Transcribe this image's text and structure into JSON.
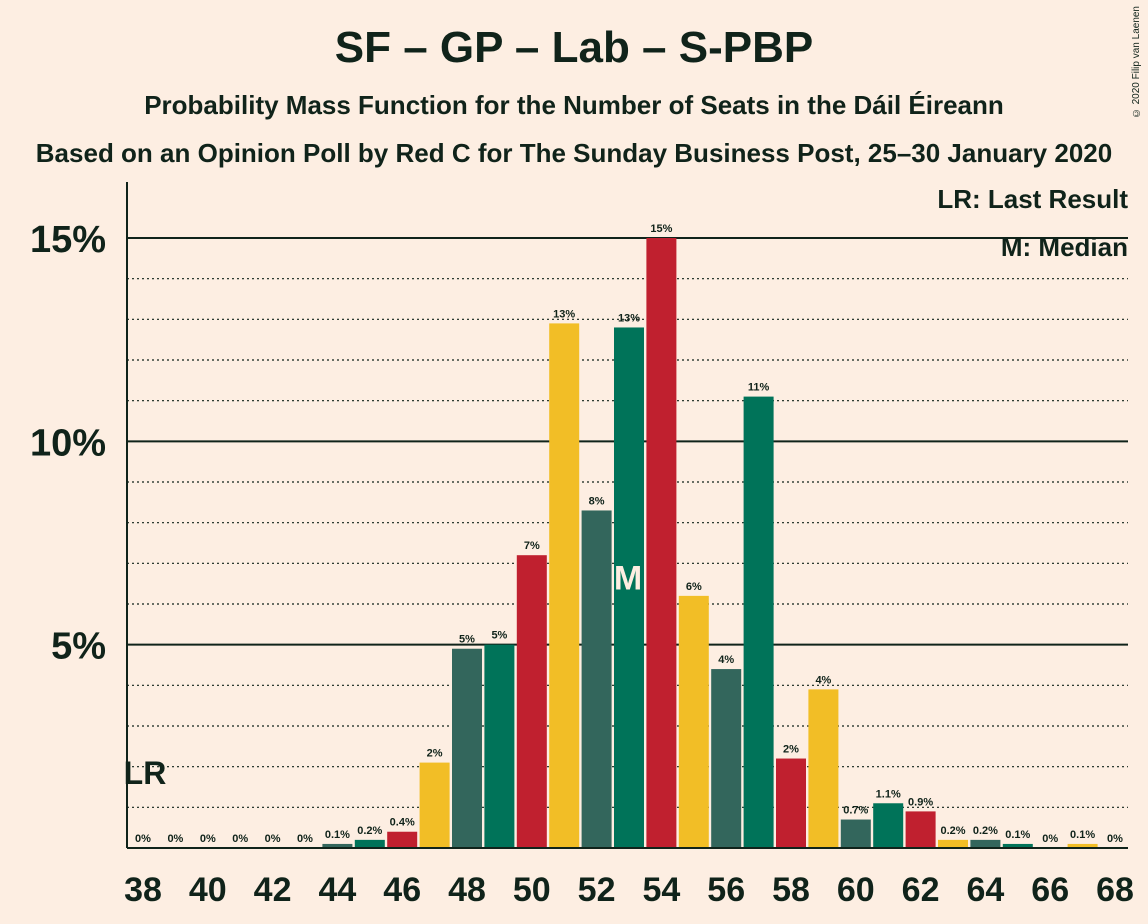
{
  "title": "SF – GP – Lab – S-PBP",
  "subtitle": "Probability Mass Function for the Number of Seats in the Dáil Éireann",
  "subtitle2": "Based on an Opinion Poll by Red C for The Sunday Business Post, 25–30 January 2020",
  "copyright": "© 2020 Filip van Laenen",
  "legend": {
    "last_result": "LR: Last Result",
    "median": "M: Median"
  },
  "chart_data": {
    "type": "bar",
    "x": [
      38,
      39,
      40,
      41,
      42,
      43,
      44,
      45,
      46,
      47,
      48,
      49,
      50,
      51,
      52,
      53,
      54,
      55,
      56,
      57,
      58,
      59,
      60,
      61,
      62,
      63,
      64,
      65,
      66,
      67,
      68
    ],
    "values": [
      0,
      0,
      0,
      0,
      0,
      0,
      0.1,
      0.2,
      0.4,
      2.1,
      4.9,
      5.0,
      7.2,
      12.9,
      8.3,
      12.8,
      15.0,
      6.2,
      4.4,
      11.1,
      2.2,
      3.9,
      0.7,
      1.1,
      0.9,
      0.2,
      0.2,
      0.1,
      0,
      0.1,
      0
    ],
    "labels": [
      "0%",
      "0%",
      "0%",
      "0%",
      "0%",
      "0%",
      "0.1%",
      "0.2%",
      "0.4%",
      "2%",
      "5%",
      "5%",
      "7%",
      "13%",
      "8%",
      "13%",
      "15%",
      "6%",
      "4%",
      "11%",
      "2%",
      "4%",
      "0.7%",
      "1.1%",
      "0.9%",
      "0.2%",
      "0.2%",
      "0.1%",
      "0%",
      "0.1%",
      "0%"
    ],
    "x_tick_labels": [
      "38",
      "40",
      "42",
      "44",
      "46",
      "48",
      "50",
      "52",
      "54",
      "56",
      "58",
      "60",
      "62",
      "64",
      "66",
      "68"
    ],
    "y_tick_labels": [
      "5%",
      "10%",
      "15%"
    ],
    "ylim": [
      0,
      16.3
    ],
    "last_result_seat": 38,
    "last_result_label": "LR",
    "median_seat": 53,
    "median_label": "M",
    "colors": {
      "red": "#C0202F",
      "yellow": "#F2BE26",
      "slate": "#33665C",
      "green": "#007359",
      "background": "#FDEEE2",
      "text": "#10231A"
    }
  }
}
